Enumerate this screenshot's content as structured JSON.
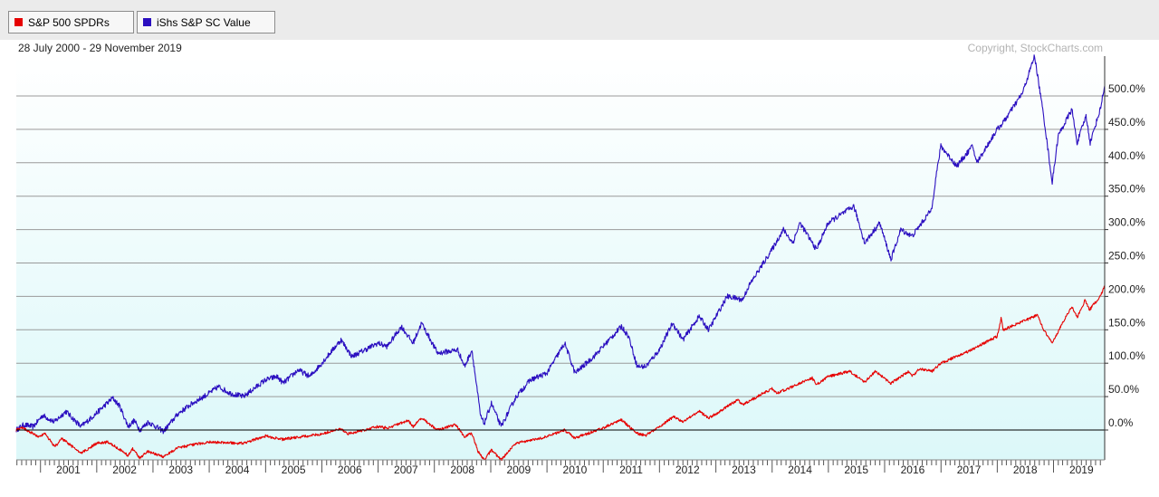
{
  "legend": [
    {
      "label": "S&P 500 SPDRs",
      "color": "#e60000"
    },
    {
      "label": "iShs S&P SC Value",
      "color": "#2b0fc0"
    }
  ],
  "date_range": "28 July 2000 - 29 November 2019",
  "copyright": "Copyright, StockCharts.com",
  "chart_data": {
    "type": "line",
    "x_axis_labels": [
      "2001",
      "2002",
      "2003",
      "2004",
      "2005",
      "2006",
      "2007",
      "2008",
      "2009",
      "2010",
      "2011",
      "2012",
      "2013",
      "2014",
      "2015",
      "2016",
      "2017",
      "2018",
      "2019"
    ],
    "y_tick_labels": [
      "0.0%",
      "50.0%",
      "100.0%",
      "150.0%",
      "200.0%",
      "250.0%",
      "300.0%",
      "350.0%",
      "400.0%",
      "450.0%",
      "500.0%"
    ],
    "ylim": [
      -45,
      560
    ],
    "xlim": [
      "2000-07-28",
      "2019-11-29"
    ],
    "grid": true,
    "colors": {
      "plot_bg_top": "#ffffff",
      "plot_bg_bottom": "#dcf8f9",
      "grid": "#9a9a9a",
      "zero_line": "#000000"
    },
    "series": [
      {
        "name": "iShs S&P SC Value",
        "color": "#2b0fc0",
        "points": [
          [
            "2000-07-28",
            0
          ],
          [
            "2000-09-15",
            8
          ],
          [
            "2000-11-15",
            5
          ],
          [
            "2001-01-15",
            22
          ],
          [
            "2001-04-01",
            12
          ],
          [
            "2001-06-15",
            28
          ],
          [
            "2001-09-20",
            5
          ],
          [
            "2001-12-15",
            22
          ],
          [
            "2002-04-15",
            48
          ],
          [
            "2002-06-01",
            35
          ],
          [
            "2002-07-24",
            5
          ],
          [
            "2002-09-01",
            14
          ],
          [
            "2002-10-09",
            0
          ],
          [
            "2002-12-01",
            12
          ],
          [
            "2003-03-11",
            -2
          ],
          [
            "2003-06-15",
            25
          ],
          [
            "2003-09-15",
            40
          ],
          [
            "2003-12-31",
            55
          ],
          [
            "2004-03-01",
            65
          ],
          [
            "2004-05-15",
            55
          ],
          [
            "2004-08-10",
            50
          ],
          [
            "2004-12-31",
            75
          ],
          [
            "2005-03-15",
            80
          ],
          [
            "2005-04-25",
            70
          ],
          [
            "2005-08-01",
            90
          ],
          [
            "2005-10-15",
            80
          ],
          [
            "2005-12-31",
            100
          ],
          [
            "2006-05-05",
            135
          ],
          [
            "2006-07-15",
            110
          ],
          [
            "2006-12-31",
            130
          ],
          [
            "2007-03-01",
            125
          ],
          [
            "2007-06-01",
            155
          ],
          [
            "2007-08-15",
            130
          ],
          [
            "2007-10-10",
            160
          ],
          [
            "2008-01-22",
            115
          ],
          [
            "2008-06-01",
            120
          ],
          [
            "2008-07-15",
            95
          ],
          [
            "2008-09-01",
            120
          ],
          [
            "2008-10-27",
            20
          ],
          [
            "2008-11-20",
            10
          ],
          [
            "2009-01-05",
            40
          ],
          [
            "2009-03-09",
            5
          ],
          [
            "2009-06-15",
            50
          ],
          [
            "2009-09-15",
            75
          ],
          [
            "2009-12-31",
            85
          ],
          [
            "2010-04-26",
            130
          ],
          [
            "2010-07-02",
            85
          ],
          [
            "2010-11-01",
            110
          ],
          [
            "2011-04-29",
            155
          ],
          [
            "2011-06-15",
            140
          ],
          [
            "2011-08-10",
            95
          ],
          [
            "2011-10-04",
            95
          ],
          [
            "2011-12-31",
            120
          ],
          [
            "2012-03-26",
            160
          ],
          [
            "2012-06-01",
            135
          ],
          [
            "2012-09-14",
            170
          ],
          [
            "2012-11-15",
            150
          ],
          [
            "2013-03-15",
            200
          ],
          [
            "2013-06-24",
            195
          ],
          [
            "2013-08-01",
            215
          ],
          [
            "2013-12-31",
            270
          ],
          [
            "2014-03-15",
            300
          ],
          [
            "2014-05-15",
            280
          ],
          [
            "2014-07-01",
            310
          ],
          [
            "2014-10-15",
            270
          ],
          [
            "2014-12-31",
            310
          ],
          [
            "2015-06-15",
            335
          ],
          [
            "2015-08-25",
            280
          ],
          [
            "2015-11-30",
            310
          ],
          [
            "2016-02-11",
            255
          ],
          [
            "2016-04-15",
            300
          ],
          [
            "2016-06-27",
            290
          ],
          [
            "2016-10-31",
            330
          ],
          [
            "2016-11-30",
            380
          ],
          [
            "2016-12-31",
            425
          ],
          [
            "2017-04-13",
            395
          ],
          [
            "2017-07-25",
            425
          ],
          [
            "2017-08-21",
            400
          ],
          [
            "2017-12-31",
            450
          ],
          [
            "2018-02-08",
            460
          ],
          [
            "2018-06-15",
            505
          ],
          [
            "2018-08-31",
            560
          ],
          [
            "2018-10-29",
            470
          ],
          [
            "2018-12-24",
            370
          ],
          [
            "2019-01-31",
            440
          ],
          [
            "2019-04-30",
            480
          ],
          [
            "2019-06-03",
            430
          ],
          [
            "2019-07-31",
            470
          ],
          [
            "2019-08-27",
            430
          ],
          [
            "2019-10-31",
            480
          ],
          [
            "2019-11-29",
            515
          ]
        ]
      },
      {
        "name": "S&P 500 SPDRs",
        "color": "#e60000",
        "points": [
          [
            "2000-07-28",
            0
          ],
          [
            "2000-09-01",
            4
          ],
          [
            "2000-12-20",
            -10
          ],
          [
            "2001-01-31",
            -6
          ],
          [
            "2001-04-04",
            -25
          ],
          [
            "2001-05-21",
            -13
          ],
          [
            "2001-09-21",
            -35
          ],
          [
            "2001-12-31",
            -20
          ],
          [
            "2002-03-19",
            -18
          ],
          [
            "2002-07-23",
            -38
          ],
          [
            "2002-08-22",
            -28
          ],
          [
            "2002-10-09",
            -42
          ],
          [
            "2002-11-27",
            -32
          ],
          [
            "2003-03-11",
            -40
          ],
          [
            "2003-06-15",
            -26
          ],
          [
            "2003-12-31",
            -18
          ],
          [
            "2004-08-12",
            -20
          ],
          [
            "2004-12-31",
            -9
          ],
          [
            "2005-04-20",
            -14
          ],
          [
            "2005-12-31",
            -6
          ],
          [
            "2006-05-05",
            2
          ],
          [
            "2006-06-13",
            -6
          ],
          [
            "2006-12-31",
            5
          ],
          [
            "2007-03-05",
            3
          ],
          [
            "2007-07-16",
            14
          ],
          [
            "2007-08-16",
            5
          ],
          [
            "2007-10-09",
            18
          ],
          [
            "2008-01-22",
            0
          ],
          [
            "2008-05-19",
            8
          ],
          [
            "2008-07-15",
            -10
          ],
          [
            "2008-09-01",
            -5
          ],
          [
            "2008-10-10",
            -32
          ],
          [
            "2008-11-20",
            -45
          ],
          [
            "2009-01-06",
            -30
          ],
          [
            "2009-03-09",
            -45
          ],
          [
            "2009-06-12",
            -20
          ],
          [
            "2009-12-31",
            -10
          ],
          [
            "2010-04-23",
            0
          ],
          [
            "2010-07-02",
            -12
          ],
          [
            "2010-12-31",
            3
          ],
          [
            "2011-04-29",
            15
          ],
          [
            "2011-08-08",
            -5
          ],
          [
            "2011-10-03",
            -8
          ],
          [
            "2011-12-31",
            5
          ],
          [
            "2012-04-02",
            20
          ],
          [
            "2012-06-01",
            12
          ],
          [
            "2012-09-14",
            28
          ],
          [
            "2012-11-15",
            18
          ],
          [
            "2012-12-31",
            24
          ],
          [
            "2013-05-21",
            45
          ],
          [
            "2013-06-24",
            38
          ],
          [
            "2013-12-31",
            62
          ],
          [
            "2014-02-03",
            55
          ],
          [
            "2014-09-18",
            78
          ],
          [
            "2014-10-15",
            68
          ],
          [
            "2014-12-31",
            80
          ],
          [
            "2015-05-21",
            88
          ],
          [
            "2015-08-25",
            72
          ],
          [
            "2015-11-03",
            88
          ],
          [
            "2016-02-11",
            70
          ],
          [
            "2016-06-08",
            88
          ],
          [
            "2016-06-27",
            80
          ],
          [
            "2016-08-15",
            92
          ],
          [
            "2016-11-04",
            88
          ],
          [
            "2016-12-31",
            100
          ],
          [
            "2017-06-30",
            118
          ],
          [
            "2017-12-31",
            140
          ],
          [
            "2018-01-26",
            168
          ],
          [
            "2018-02-08",
            150
          ],
          [
            "2018-09-20",
            172
          ],
          [
            "2018-10-29",
            150
          ],
          [
            "2018-12-24",
            130
          ],
          [
            "2019-02-28",
            160
          ],
          [
            "2019-04-30",
            185
          ],
          [
            "2019-06-03",
            168
          ],
          [
            "2019-07-26",
            195
          ],
          [
            "2019-08-23",
            180
          ],
          [
            "2019-10-31",
            200
          ],
          [
            "2019-11-29",
            215
          ]
        ]
      }
    ]
  }
}
